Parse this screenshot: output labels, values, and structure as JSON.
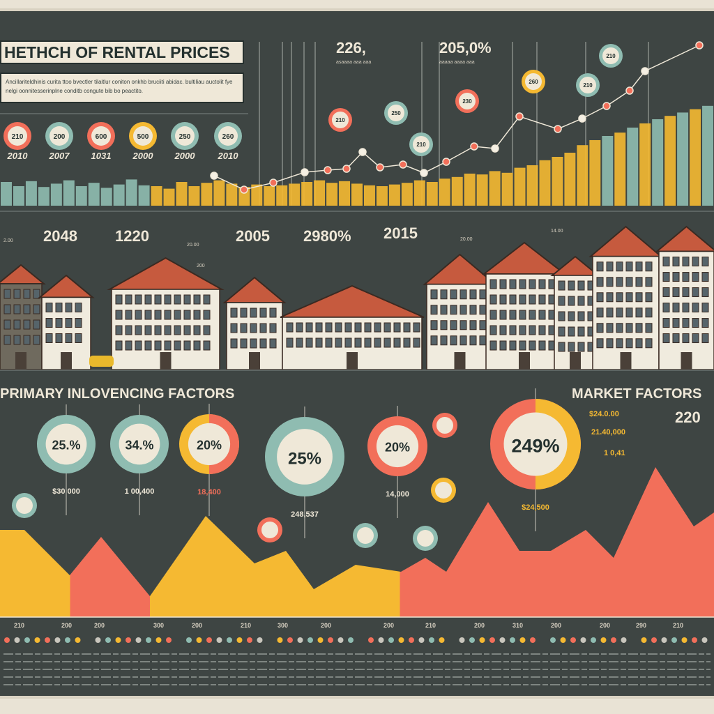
{
  "header": {
    "title": "HETHCH  OF RENTAL PRICES",
    "description": "Ancillariteldhinis curita ttoo bvectler tilaitlur coniton onkhb bruciiti abidac. bultiliau auctolit fye nelgi oonnitesserinplne conditb congute bib bo peactito.",
    "stats": [
      {
        "value": "226,",
        "caption": "asaaaa aaa aaa"
      },
      {
        "value": "205,0%",
        "caption": "aaaaa aaaa aaa"
      }
    ],
    "circles": [
      {
        "value": "210",
        "year": "2010",
        "color": "#f26f5a"
      },
      {
        "value": "200",
        "year": "2007",
        "color": "#8fbcb1"
      },
      {
        "value": "600",
        "year": "1031",
        "color": "#f26f5a"
      },
      {
        "value": "500",
        "year": "2000",
        "color": "#f5b932"
      },
      {
        "value": "250",
        "year": "2000",
        "color": "#8fbcb1"
      },
      {
        "value": "260",
        "year": "2010",
        "color": "#8fbcb1"
      }
    ],
    "markers": [
      "210",
      "250",
      "230",
      "260",
      "210",
      "210",
      "210"
    ]
  },
  "houses_section": {
    "years": [
      {
        "value": "2048"
      },
      {
        "value": "1220"
      },
      {
        "value": "2005"
      },
      {
        "value": "2980%"
      },
      {
        "value": "2015"
      }
    ],
    "small_labels": [
      "2.00",
      "20.00",
      "200",
      "20.00",
      "14.00"
    ]
  },
  "factors": {
    "primary_title": "PRIMARY INLOVENCING FACTORS",
    "market_title": "MARKET FACTORS",
    "market_stat": "220",
    "market_figures": [
      "$24.0.00",
      "21.40,000",
      "1 0,41"
    ],
    "donuts": [
      {
        "value": "25.%",
        "ring": "#8fbcb1",
        "ring2": "#8fbcb1",
        "sub": "$30 000"
      },
      {
        "value": "34.%",
        "ring": "#8fbcb1",
        "ring2": "#8fbcb1",
        "sub": "1 00,400"
      },
      {
        "value": "20%",
        "ring": "#f5b932",
        "ring2": "#f26f5a",
        "sub": "18,400"
      },
      {
        "value": "25%",
        "ring": "#8fbcb1",
        "ring2": "#8fbcb1",
        "sub": "248,537"
      },
      {
        "value": "20%",
        "ring": "#f26f5a",
        "ring2": "#f26f5a",
        "sub": "14,000"
      },
      {
        "value": "249%",
        "ring": "#f26f5a",
        "ring2": "#f5b932",
        "sub": "$24,500"
      }
    ]
  },
  "colors": {
    "background": "#3e4543",
    "panel": "#efe8d8",
    "teal": "#8fbcb1",
    "yellow": "#f5b932",
    "red": "#f26f5a"
  },
  "chart_data": [
    {
      "type": "bar",
      "title": "",
      "values": [
        40,
        30,
        42,
        28,
        36,
        44,
        30,
        38,
        26,
        34,
        46,
        32,
        30,
        24,
        40,
        30,
        38,
        44,
        36,
        28,
        34,
        30,
        32,
        36,
        40,
        44,
        38,
        42,
        36,
        32,
        30,
        34,
        38,
        44,
        40,
        48,
        52,
        60,
        58,
        66,
        62,
        74,
        80,
        92,
        100,
        110,
        128,
        140,
        150,
        158,
        170,
        180,
        190,
        198,
        206,
        214,
        222
      ],
      "xlabel": "",
      "ylabel": ""
    },
    {
      "type": "line",
      "title": "",
      "values": [
        48,
        28,
        38,
        53,
        56,
        58,
        82,
        60,
        64,
        52,
        68,
        90,
        87,
        133,
        115,
        130,
        148,
        170,
        198,
        235
      ],
      "xlabel": "",
      "ylabel": ""
    },
    {
      "type": "area",
      "title": "",
      "values": [
        125,
        125,
        60,
        115,
        30,
        145,
        77,
        95,
        40,
        75,
        65,
        85,
        65,
        165,
        95,
        95,
        125,
        85,
        215,
        130,
        150
      ],
      "tick_labels": [
        "210",
        "200",
        "200",
        "300",
        "200",
        "210",
        "300",
        "200",
        "200",
        "210",
        "200",
        "310",
        "200",
        "200",
        "290",
        "210"
      ],
      "xlabel": "",
      "ylabel": ""
    }
  ]
}
